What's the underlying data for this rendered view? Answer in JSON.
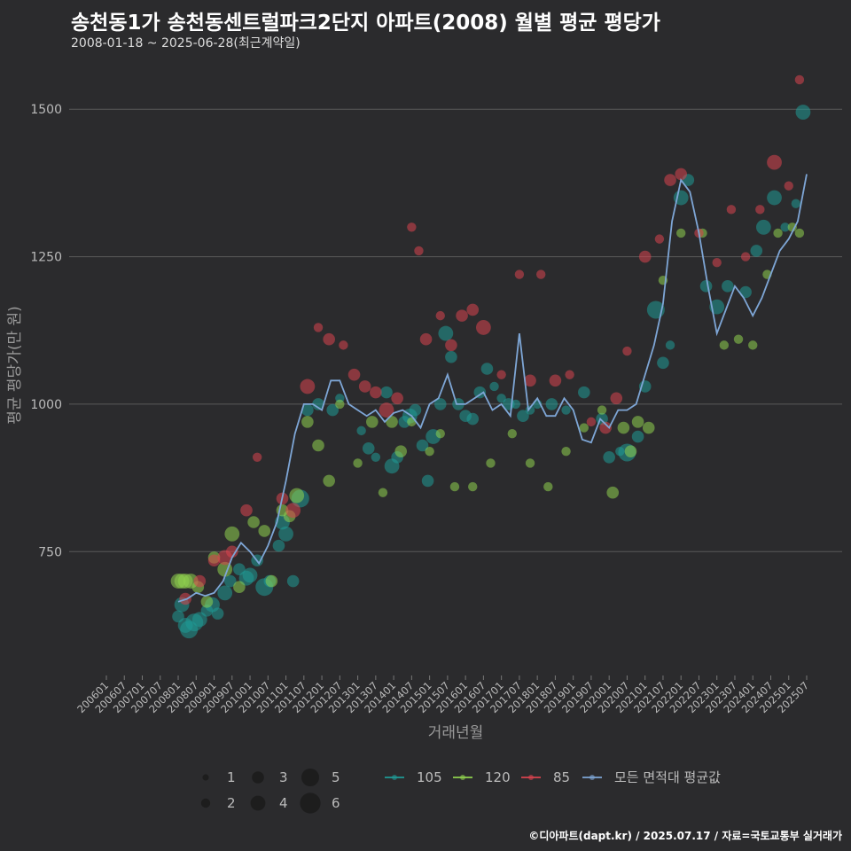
{
  "title": "송천동1가 송천동센트럴파크2단지 아파트(2008) 월별 평균 평당가",
  "subtitle": "2008-01-18 ~ 2025-06-28(최근계약일)",
  "credit": "©디아파트(dapt.kr) / 2025.07.17 / 자료=국토교통부 실거래가",
  "colors": {
    "background": "#2b2b2d",
    "grid": "#5a5a5a",
    "axis_text": "#bbbbbb",
    "area_105": "#1f9a96",
    "area_120": "#8fd14f",
    "area_85": "#d9434f",
    "average": "#7ea6d6"
  },
  "chart_data": {
    "type": "line",
    "title": "송천동1가 송천동센트럴파크2단지 아파트(2008) 월별 평균 평당가",
    "xlabel": "거래년월",
    "ylabel": "평균 평당가(만 원)",
    "ylim": [
      540,
      1580
    ],
    "y_ticks": [
      750,
      1000,
      1250,
      1500
    ],
    "x_ticks": [
      "200601",
      "200607",
      "200701",
      "200707",
      "200801",
      "200807",
      "200901",
      "200907",
      "201001",
      "201007",
      "201101",
      "201107",
      "201201",
      "201207",
      "201301",
      "201307",
      "201401",
      "201407",
      "201501",
      "201507",
      "201601",
      "201607",
      "201701",
      "201707",
      "201801",
      "201807",
      "201901",
      "201907",
      "202001",
      "202007",
      "202101",
      "202107",
      "202201",
      "202207",
      "202301",
      "202307",
      "202401",
      "202407",
      "202501",
      "202507"
    ],
    "grid": true,
    "legend_size": {
      "title": "",
      "labels": [
        "1",
        "2",
        "3",
        "4",
        "5",
        "6"
      ]
    },
    "legend_series": {
      "labels": [
        "105",
        "120",
        "85",
        "모든 면적대 평균값"
      ]
    },
    "series": [
      {
        "name": "모든 면적대 평균값",
        "x": [
          2008.0,
          2008.25,
          2008.5,
          2008.75,
          2009.0,
          2009.25,
          2009.5,
          2009.75,
          2010.0,
          2010.25,
          2010.5,
          2010.75,
          2011.0,
          2011.25,
          2011.5,
          2011.75,
          2012.0,
          2012.25,
          2012.5,
          2012.75,
          2013.0,
          2013.25,
          2013.5,
          2013.75,
          2014.0,
          2014.25,
          2014.5,
          2014.75,
          2015.0,
          2015.25,
          2015.5,
          2015.75,
          2016.0,
          2016.25,
          2016.5,
          2016.75,
          2017.0,
          2017.25,
          2017.5,
          2017.75,
          2018.0,
          2018.25,
          2018.5,
          2018.75,
          2019.0,
          2019.25,
          2019.5,
          2019.75,
          2020.0,
          2020.25,
          2020.5,
          2020.75,
          2021.0,
          2021.25,
          2021.5,
          2021.75,
          2022.0,
          2022.25,
          2022.5,
          2022.75,
          2023.0,
          2023.25,
          2023.5,
          2023.75,
          2024.0,
          2024.25,
          2024.5,
          2024.75,
          2025.0,
          2025.25,
          2025.5
        ],
        "values": [
          665,
          670,
          680,
          675,
          680,
          700,
          740,
          765,
          750,
          730,
          760,
          800,
          870,
          950,
          1000,
          1000,
          990,
          1040,
          1040,
          1000,
          990,
          980,
          990,
          970,
          985,
          990,
          980,
          960,
          1000,
          1010,
          1050,
          1000,
          1000,
          1010,
          1020,
          990,
          1000,
          980,
          1120,
          990,
          1010,
          980,
          980,
          1010,
          990,
          940,
          935,
          975,
          960,
          990,
          990,
          1000,
          1050,
          1100,
          1170,
          1310,
          1380,
          1360,
          1290,
          1200,
          1120,
          1160,
          1200,
          1180,
          1150,
          1180,
          1220,
          1260,
          1280,
          1310,
          1390
        ]
      },
      {
        "name": "105",
        "points": [
          [
            2008.0,
            640,
            3
          ],
          [
            2008.1,
            660,
            4
          ],
          [
            2008.2,
            625,
            4
          ],
          [
            2008.3,
            618,
            5
          ],
          [
            2008.45,
            630,
            5
          ],
          [
            2008.6,
            635,
            4
          ],
          [
            2008.8,
            650,
            3
          ],
          [
            2008.95,
            660,
            4
          ],
          [
            2009.1,
            645,
            3
          ],
          [
            2009.3,
            680,
            4
          ],
          [
            2009.45,
            700,
            3
          ],
          [
            2009.7,
            720,
            3
          ],
          [
            2009.9,
            705,
            4
          ],
          [
            2010.0,
            710,
            4
          ],
          [
            2010.2,
            735,
            3
          ],
          [
            2010.4,
            690,
            5
          ],
          [
            2010.55,
            700,
            3
          ],
          [
            2010.8,
            760,
            3
          ],
          [
            2010.9,
            800,
            4
          ],
          [
            2011.0,
            780,
            4
          ],
          [
            2011.2,
            700,
            3
          ],
          [
            2011.4,
            840,
            5
          ],
          [
            2011.6,
            990,
            3
          ],
          [
            2011.9,
            1000,
            3
          ],
          [
            2012.3,
            990,
            3
          ],
          [
            2012.5,
            1010,
            2
          ],
          [
            2013.1,
            955,
            2
          ],
          [
            2013.3,
            925,
            3
          ],
          [
            2013.5,
            910,
            2
          ],
          [
            2013.8,
            1020,
            3
          ],
          [
            2013.95,
            895,
            4
          ],
          [
            2014.1,
            910,
            3
          ],
          [
            2014.3,
            970,
            3
          ],
          [
            2014.45,
            980,
            4
          ],
          [
            2014.6,
            990,
            3
          ],
          [
            2014.8,
            930,
            3
          ],
          [
            2014.95,
            870,
            3
          ],
          [
            2015.1,
            945,
            4
          ],
          [
            2015.3,
            1000,
            3
          ],
          [
            2015.45,
            1120,
            4
          ],
          [
            2015.6,
            1080,
            3
          ],
          [
            2015.8,
            1000,
            3
          ],
          [
            2016.0,
            980,
            3
          ],
          [
            2016.2,
            975,
            3
          ],
          [
            2016.4,
            1020,
            3
          ],
          [
            2016.6,
            1060,
            3
          ],
          [
            2016.8,
            1030,
            2
          ],
          [
            2017.0,
            1010,
            2
          ],
          [
            2017.2,
            1000,
            3
          ],
          [
            2017.4,
            1000,
            2
          ],
          [
            2017.6,
            980,
            3
          ],
          [
            2017.8,
            990,
            2
          ],
          [
            2018.0,
            1000,
            2
          ],
          [
            2018.4,
            1000,
            3
          ],
          [
            2018.8,
            990,
            2
          ],
          [
            2019.3,
            1020,
            3
          ],
          [
            2019.8,
            975,
            3
          ],
          [
            2020.0,
            910,
            3
          ],
          [
            2020.3,
            920,
            2
          ],
          [
            2020.5,
            918,
            5
          ],
          [
            2020.8,
            945,
            3
          ],
          [
            2021.0,
            1030,
            3
          ],
          [
            2021.3,
            1160,
            5
          ],
          [
            2021.5,
            1070,
            3
          ],
          [
            2021.7,
            1100,
            2
          ],
          [
            2022.0,
            1350,
            4
          ],
          [
            2022.2,
            1380,
            3
          ],
          [
            2022.7,
            1200,
            3
          ],
          [
            2023.0,
            1165,
            4
          ],
          [
            2023.3,
            1200,
            3
          ],
          [
            2023.8,
            1190,
            3
          ],
          [
            2024.1,
            1260,
            3
          ],
          [
            2024.3,
            1300,
            4
          ],
          [
            2024.6,
            1350,
            4
          ],
          [
            2024.9,
            1300,
            2
          ],
          [
            2025.2,
            1340,
            2
          ],
          [
            2025.4,
            1495,
            4
          ]
        ]
      },
      {
        "name": "120",
        "points": [
          [
            2008.0,
            700,
            4
          ],
          [
            2008.1,
            700,
            4
          ],
          [
            2008.2,
            700,
            4
          ],
          [
            2008.35,
            700,
            4
          ],
          [
            2008.55,
            690,
            3
          ],
          [
            2008.8,
            665,
            3
          ],
          [
            2009.0,
            740,
            3
          ],
          [
            2009.3,
            720,
            4
          ],
          [
            2009.5,
            780,
            4
          ],
          [
            2009.7,
            690,
            3
          ],
          [
            2010.1,
            800,
            3
          ],
          [
            2010.4,
            785,
            3
          ],
          [
            2010.6,
            700,
            3
          ],
          [
            2010.9,
            820,
            3
          ],
          [
            2011.1,
            810,
            3
          ],
          [
            2011.3,
            845,
            4
          ],
          [
            2011.6,
            970,
            3
          ],
          [
            2011.9,
            930,
            3
          ],
          [
            2012.2,
            870,
            3
          ],
          [
            2012.5,
            1000,
            2
          ],
          [
            2013.0,
            900,
            2
          ],
          [
            2013.4,
            970,
            3
          ],
          [
            2013.7,
            850,
            2
          ],
          [
            2013.95,
            970,
            3
          ],
          [
            2014.2,
            920,
            3
          ],
          [
            2014.5,
            970,
            2
          ],
          [
            2015.0,
            920,
            2
          ],
          [
            2015.3,
            950,
            2
          ],
          [
            2015.7,
            860,
            2
          ],
          [
            2016.2,
            860,
            2
          ],
          [
            2016.7,
            900,
            2
          ],
          [
            2017.3,
            950,
            2
          ],
          [
            2017.8,
            900,
            2
          ],
          [
            2018.3,
            860,
            2
          ],
          [
            2018.8,
            920,
            2
          ],
          [
            2019.3,
            960,
            2
          ],
          [
            2019.8,
            990,
            2
          ],
          [
            2020.1,
            850,
            3
          ],
          [
            2020.4,
            960,
            3
          ],
          [
            2020.6,
            920,
            3
          ],
          [
            2020.8,
            970,
            3
          ],
          [
            2021.1,
            960,
            3
          ],
          [
            2021.5,
            1210,
            2
          ],
          [
            2022.0,
            1290,
            2
          ],
          [
            2022.6,
            1290,
            2
          ],
          [
            2023.2,
            1100,
            2
          ],
          [
            2023.6,
            1110,
            2
          ],
          [
            2024.0,
            1100,
            2
          ],
          [
            2024.4,
            1220,
            2
          ],
          [
            2024.7,
            1290,
            2
          ],
          [
            2025.1,
            1300,
            2
          ],
          [
            2025.3,
            1290,
            2
          ]
        ]
      },
      {
        "name": "85",
        "points": [
          [
            2008.2,
            670,
            3
          ],
          [
            2008.6,
            700,
            3
          ],
          [
            2009.0,
            735,
            3
          ],
          [
            2009.3,
            740,
            4
          ],
          [
            2009.5,
            750,
            3
          ],
          [
            2009.9,
            820,
            3
          ],
          [
            2010.2,
            910,
            2
          ],
          [
            2010.9,
            840,
            3
          ],
          [
            2011.2,
            820,
            4
          ],
          [
            2011.6,
            1030,
            4
          ],
          [
            2011.9,
            1130,
            2
          ],
          [
            2012.2,
            1110,
            3
          ],
          [
            2012.6,
            1100,
            2
          ],
          [
            2012.9,
            1050,
            3
          ],
          [
            2013.2,
            1030,
            3
          ],
          [
            2013.5,
            1020,
            3
          ],
          [
            2013.8,
            990,
            4
          ],
          [
            2014.1,
            1010,
            3
          ],
          [
            2014.5,
            1300,
            2
          ],
          [
            2014.7,
            1260,
            2
          ],
          [
            2014.9,
            1110,
            3
          ],
          [
            2015.3,
            1150,
            2
          ],
          [
            2015.6,
            1100,
            3
          ],
          [
            2015.9,
            1150,
            3
          ],
          [
            2016.2,
            1160,
            3
          ],
          [
            2016.5,
            1130,
            4
          ],
          [
            2017.0,
            1050,
            2
          ],
          [
            2017.5,
            1220,
            2
          ],
          [
            2017.8,
            1040,
            3
          ],
          [
            2018.1,
            1220,
            2
          ],
          [
            2018.5,
            1040,
            3
          ],
          [
            2018.9,
            1050,
            2
          ],
          [
            2019.5,
            970,
            2
          ],
          [
            2019.9,
            960,
            3
          ],
          [
            2020.2,
            1010,
            3
          ],
          [
            2020.5,
            1090,
            2
          ],
          [
            2021.0,
            1250,
            3
          ],
          [
            2021.4,
            1280,
            2
          ],
          [
            2021.7,
            1380,
            3
          ],
          [
            2022.0,
            1390,
            3
          ],
          [
            2022.5,
            1290,
            2
          ],
          [
            2023.0,
            1240,
            2
          ],
          [
            2023.4,
            1330,
            2
          ],
          [
            2023.8,
            1250,
            2
          ],
          [
            2024.2,
            1330,
            2
          ],
          [
            2024.6,
            1410,
            4
          ],
          [
            2025.0,
            1370,
            2
          ],
          [
            2025.3,
            1550,
            2
          ]
        ]
      }
    ]
  }
}
